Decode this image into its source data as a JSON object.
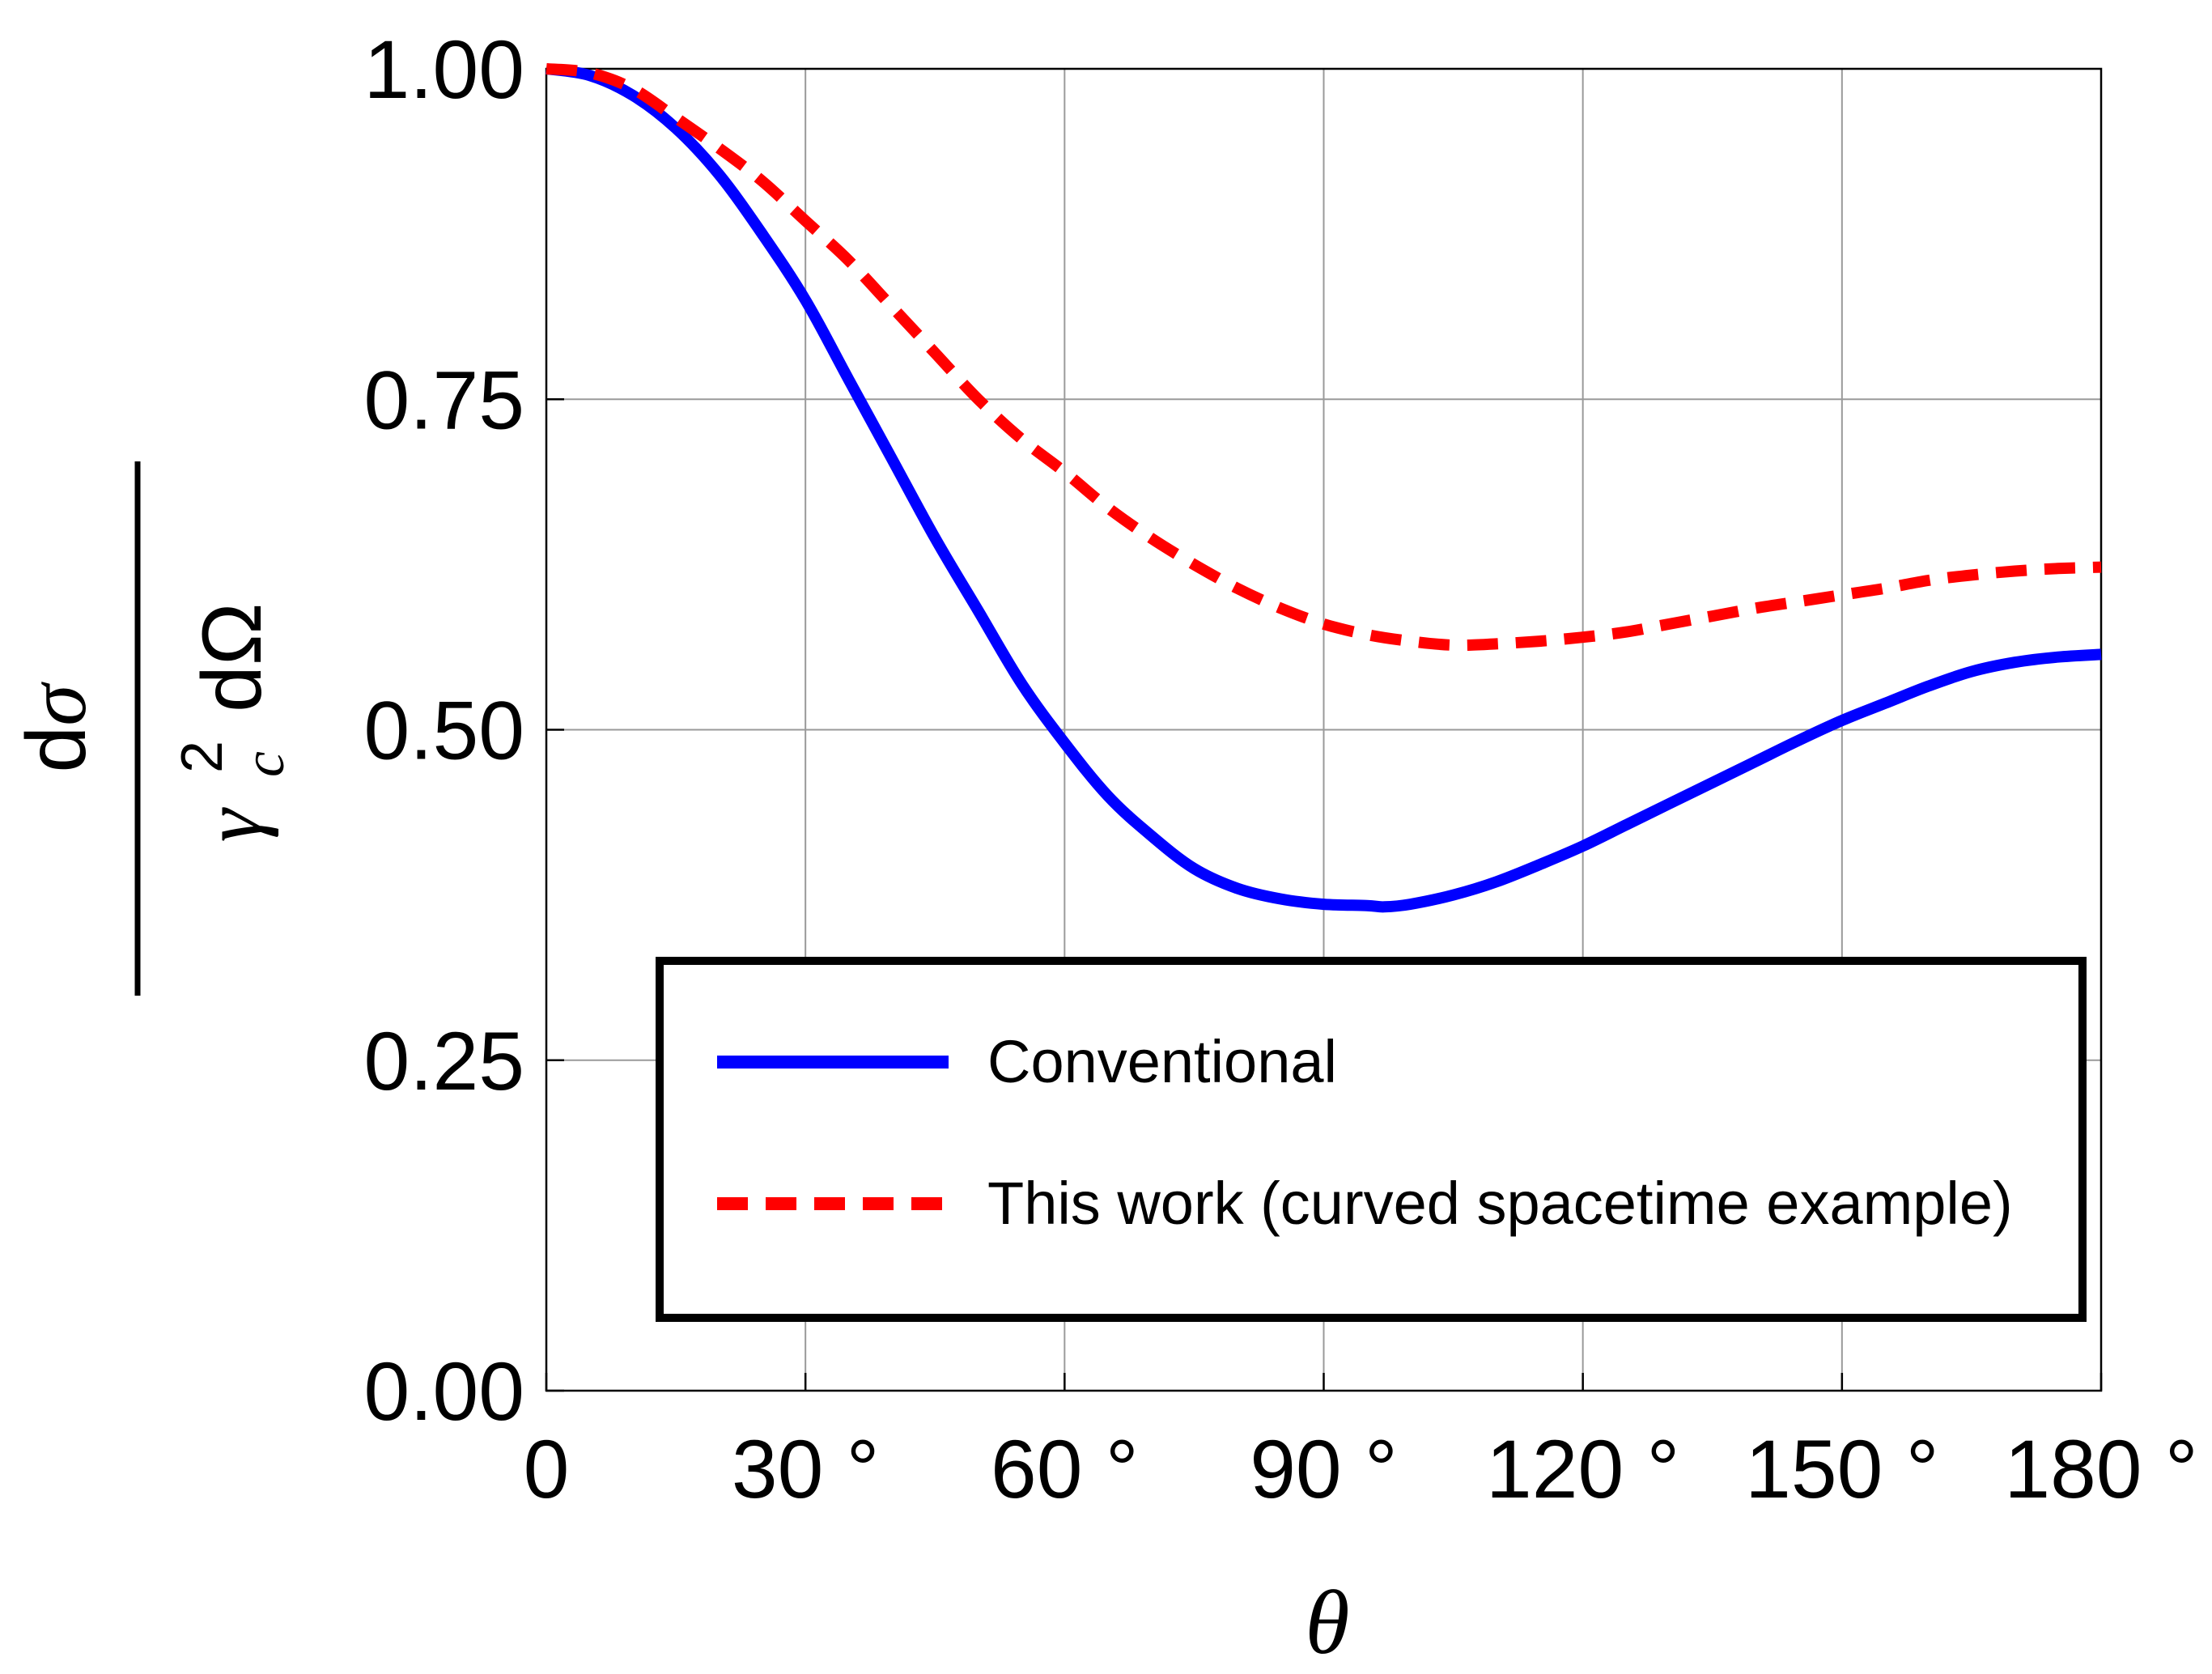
{
  "chart_data": {
    "type": "line",
    "title": "",
    "xlabel": "θ",
    "ylabel": {
      "numerator": "dσ",
      "denominator_symbol": "γ",
      "denominator_superscript": "2",
      "denominator_subscript": "c",
      "denominator_suffix": "dΩ"
    },
    "xlim": [
      0,
      180
    ],
    "ylim": [
      0,
      1
    ],
    "x_ticks": [
      {
        "value": 0,
        "label": "0"
      },
      {
        "value": 30,
        "label": "30 °"
      },
      {
        "value": 60,
        "label": "60 °"
      },
      {
        "value": 90,
        "label": "90 °"
      },
      {
        "value": 120,
        "label": "120 °"
      },
      {
        "value": 150,
        "label": "150 °"
      },
      {
        "value": 180,
        "label": "180 °"
      }
    ],
    "y_ticks": [
      {
        "value": 0,
        "label": "0.00"
      },
      {
        "value": 0.25,
        "label": "0.25"
      },
      {
        "value": 0.5,
        "label": "0.50"
      },
      {
        "value": 0.75,
        "label": "0.75"
      },
      {
        "value": 1,
        "label": "1.00"
      }
    ],
    "grid": true,
    "legend_position": "lower-right",
    "series": [
      {
        "name": "Conventional",
        "color": "#0000ff",
        "style": "solid",
        "x": [
          0,
          5,
          10,
          15,
          20,
          25,
          30,
          35,
          40,
          45,
          50,
          55,
          60,
          65,
          70,
          75,
          80,
          85,
          90,
          95,
          97,
          100,
          105,
          110,
          115,
          120,
          125,
          130,
          135,
          140,
          145,
          150,
          155,
          160,
          165,
          170,
          175,
          180
        ],
        "y": [
          1.0,
          0.995,
          0.98,
          0.955,
          0.92,
          0.875,
          0.825,
          0.765,
          0.705,
          0.645,
          0.59,
          0.535,
          0.49,
          0.45,
          0.42,
          0.395,
          0.38,
          0.372,
          0.368,
          0.367,
          0.366,
          0.368,
          0.375,
          0.385,
          0.398,
          0.412,
          0.428,
          0.444,
          0.46,
          0.476,
          0.492,
          0.507,
          0.52,
          0.533,
          0.544,
          0.551,
          0.555,
          0.557
        ]
      },
      {
        "name": "This work (curved spacetime example)",
        "color": "#ff0000",
        "style": "dashed",
        "x": [
          0,
          5,
          10,
          15,
          20,
          25,
          30,
          35,
          40,
          45,
          50,
          55,
          60,
          65,
          70,
          75,
          80,
          85,
          90,
          95,
          100,
          105,
          110,
          115,
          120,
          125,
          130,
          135,
          140,
          145,
          150,
          155,
          160,
          165,
          170,
          175,
          180
        ],
        "y": [
          1.0,
          0.997,
          0.985,
          0.963,
          0.94,
          0.915,
          0.885,
          0.855,
          0.82,
          0.785,
          0.75,
          0.72,
          0.695,
          0.668,
          0.645,
          0.625,
          0.607,
          0.592,
          0.58,
          0.572,
          0.567,
          0.564,
          0.565,
          0.567,
          0.57,
          0.574,
          0.58,
          0.586,
          0.592,
          0.597,
          0.602,
          0.607,
          0.613,
          0.617,
          0.62,
          0.622,
          0.623
        ]
      }
    ]
  }
}
